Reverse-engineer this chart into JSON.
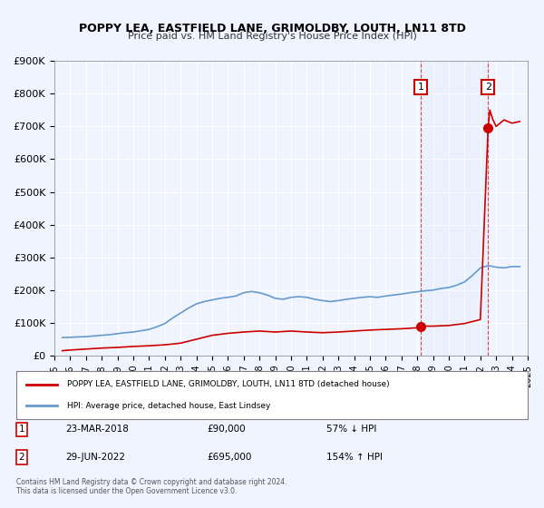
{
  "title": "POPPY LEA, EASTFIELD LANE, GRIMOLDBY, LOUTH, LN11 8TD",
  "subtitle": "Price paid vs. HM Land Registry's House Price Index (HPI)",
  "xlim": [
    1995,
    2025
  ],
  "ylim": [
    0,
    900000
  ],
  "yticks": [
    0,
    100000,
    200000,
    300000,
    400000,
    500000,
    600000,
    700000,
    800000,
    900000
  ],
  "ytick_labels": [
    "£0",
    "£100K",
    "£200K",
    "£300K",
    "£400K",
    "£500K",
    "£600K",
    "£700K",
    "£800K",
    "£900K"
  ],
  "hpi_color": "#6699cc",
  "property_color": "#cc0000",
  "background_color": "#f0f4ff",
  "plot_bg_color": "#f0f4ff",
  "grid_color": "#ffffff",
  "transaction1": {
    "date": "23-MAR-2018",
    "price": 90000,
    "pct": "57%",
    "dir": "↓",
    "label": "1",
    "year": 2018.22
  },
  "transaction2": {
    "date": "29-JUN-2022",
    "price": 695000,
    "pct": "154%",
    "dir": "↑",
    "label": "2",
    "year": 2022.49
  },
  "legend_property_label": "POPPY LEA, EASTFIELD LANE, GRIMOLDBY, LOUTH, LN11 8TD (detached house)",
  "legend_hpi_label": "HPI: Average price, detached house, East Lindsey",
  "footnote": "Contains HM Land Registry data © Crown copyright and database right 2024.\nThis data is licensed under the Open Government Licence v3.0.",
  "hpi_data": {
    "years": [
      1995.5,
      1996.0,
      1996.5,
      1997.0,
      1997.5,
      1998.0,
      1998.5,
      1999.0,
      1999.5,
      2000.0,
      2000.5,
      2001.0,
      2001.5,
      2002.0,
      2002.5,
      2003.0,
      2003.5,
      2004.0,
      2004.5,
      2005.0,
      2005.5,
      2006.0,
      2006.5,
      2007.0,
      2007.5,
      2008.0,
      2008.5,
      2009.0,
      2009.5,
      2010.0,
      2010.5,
      2011.0,
      2011.5,
      2012.0,
      2012.5,
      2013.0,
      2013.5,
      2014.0,
      2014.5,
      2015.0,
      2015.5,
      2016.0,
      2016.5,
      2017.0,
      2017.5,
      2018.0,
      2018.5,
      2019.0,
      2019.5,
      2020.0,
      2020.5,
      2021.0,
      2021.5,
      2022.0,
      2022.5,
      2023.0,
      2023.5,
      2024.0,
      2024.5
    ],
    "values": [
      55000,
      56000,
      57000,
      58000,
      60000,
      62000,
      64000,
      67000,
      70000,
      72000,
      76000,
      80000,
      88000,
      98000,
      115000,
      130000,
      145000,
      158000,
      165000,
      170000,
      175000,
      178000,
      182000,
      192000,
      196000,
      192000,
      185000,
      175000,
      172000,
      178000,
      180000,
      178000,
      172000,
      168000,
      165000,
      168000,
      172000,
      175000,
      178000,
      180000,
      178000,
      182000,
      185000,
      188000,
      192000,
      195000,
      198000,
      200000,
      205000,
      208000,
      215000,
      225000,
      245000,
      268000,
      275000,
      270000,
      268000,
      272000,
      272000
    ]
  },
  "property_data": {
    "years": [
      1995.5,
      1996.0,
      1997.0,
      1998.0,
      1999.0,
      2000.0,
      2001.0,
      2002.0,
      2003.0,
      2004.0,
      2005.0,
      2006.0,
      2007.0,
      2008.0,
      2009.0,
      2010.0,
      2011.0,
      2012.0,
      2013.0,
      2014.0,
      2015.0,
      2016.0,
      2017.0,
      2018.0,
      2018.22,
      2019.0,
      2020.0,
      2021.0,
      2022.0,
      2022.49,
      2022.6,
      2022.8,
      2023.0,
      2023.5,
      2024.0,
      2024.5
    ],
    "values": [
      15000,
      17000,
      20000,
      23000,
      25000,
      28000,
      30000,
      33000,
      38000,
      50000,
      62000,
      68000,
      72000,
      75000,
      72000,
      75000,
      72000,
      70000,
      72000,
      75000,
      78000,
      80000,
      82000,
      85000,
      90000,
      90000,
      92000,
      98000,
      110000,
      695000,
      750000,
      720000,
      700000,
      720000,
      710000,
      715000
    ]
  }
}
